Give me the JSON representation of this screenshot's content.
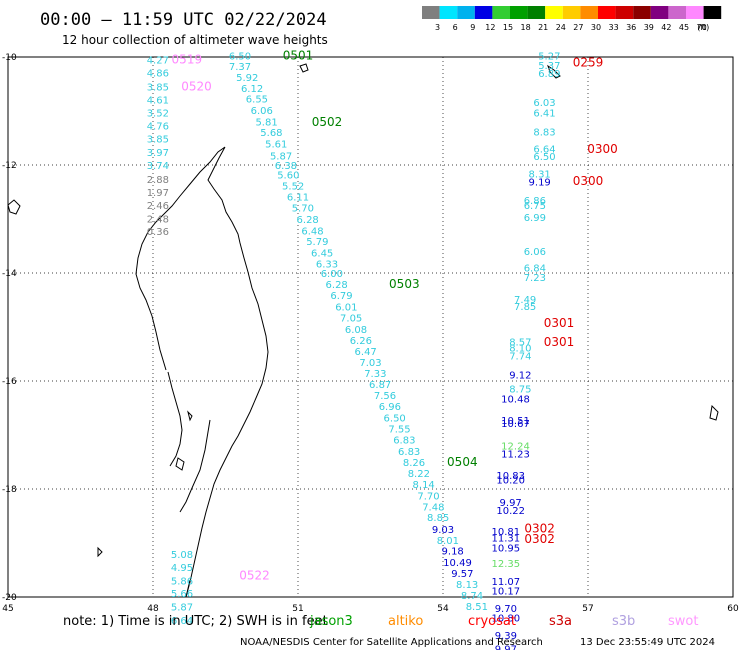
{
  "header": {
    "title": "00:00 – 11:59 UTC 02/22/2024",
    "subtitle": "12 hour collection of altimeter wave heights"
  },
  "legend": {
    "unit": "(ft)",
    "bins": [
      {
        "label": "3",
        "color": "#7f7f7f"
      },
      {
        "label": "6",
        "color": "#00e5ff"
      },
      {
        "label": "9",
        "color": "#00b2ee"
      },
      {
        "label": "12",
        "color": "#0000e5"
      },
      {
        "label": "15",
        "color": "#32cd32"
      },
      {
        "label": "18",
        "color": "#00a000"
      },
      {
        "label": "21",
        "color": "#008000"
      },
      {
        "label": "24",
        "color": "#ffff00"
      },
      {
        "label": "27",
        "color": "#ffcc00"
      },
      {
        "label": "30",
        "color": "#ff8c00"
      },
      {
        "label": "33",
        "color": "#ff0000"
      },
      {
        "label": "36",
        "color": "#cd0000"
      },
      {
        "label": "39",
        "color": "#8b0000"
      },
      {
        "label": "42",
        "color": "#800080"
      },
      {
        "label": "45",
        "color": "#cc66cc"
      },
      {
        "label": "70",
        "color": "#ff88ff"
      },
      {
        "label": "",
        "color": "#000000"
      }
    ]
  },
  "axes": {
    "x_ticks": [
      "45",
      "48",
      "51",
      "54",
      "57",
      "60"
    ],
    "y_ticks": [
      "-10",
      "-12",
      "-14",
      "-16",
      "-18",
      "-20"
    ]
  },
  "passes": [
    {
      "label": "0501",
      "lon": 51.0,
      "lat": -9.97,
      "color": "#008000"
    },
    {
      "label": "0502",
      "lon": 51.6,
      "lat": -11.2,
      "color": "#008000"
    },
    {
      "label": "0503",
      "lon": 53.2,
      "lat": -14.2,
      "color": "#008000"
    },
    {
      "label": "0504",
      "lon": 54.4,
      "lat": -17.5,
      "color": "#008000"
    },
    {
      "label": "0519",
      "lon": 48.7,
      "lat": -10.05,
      "color": "#ff88ff"
    },
    {
      "label": "0520",
      "lon": 48.9,
      "lat": -10.55,
      "color": "#ff88ff"
    },
    {
      "label": "0522",
      "lon": 50.1,
      "lat": -19.6,
      "color": "#ff88ff"
    },
    {
      "label": "0259",
      "lon": 57.0,
      "lat": -10.1,
      "color": "#e00000"
    },
    {
      "label": "0300",
      "lon": 57.3,
      "lat": -11.7,
      "color": "#e00000"
    },
    {
      "label": "0300",
      "lon": 57.0,
      "lat": -12.3,
      "color": "#e00000"
    },
    {
      "label": "0301",
      "lon": 56.4,
      "lat": -14.93,
      "color": "#e00000"
    },
    {
      "label": "0301",
      "lon": 56.4,
      "lat": -15.28,
      "color": "#e00000"
    },
    {
      "label": "0302",
      "lon": 56.0,
      "lat": -18.73,
      "color": "#e00000"
    },
    {
      "label": "0302",
      "lon": 56.0,
      "lat": -18.93,
      "color": "#e00000"
    }
  ],
  "observations": [
    {
      "lon": 48.1,
      "lat": -10.05,
      "text": "4.27",
      "color": "#33ccdd"
    },
    {
      "lon": 48.1,
      "lat": -10.29,
      "text": "4.86",
      "color": "#33ccdd"
    },
    {
      "lon": 48.1,
      "lat": -10.55,
      "text": "3.85",
      "color": "#33ccdd"
    },
    {
      "lon": 48.1,
      "lat": -10.79,
      "text": "4.61",
      "color": "#33ccdd"
    },
    {
      "lon": 48.1,
      "lat": -11.03,
      "text": "3.52",
      "color": "#33ccdd"
    },
    {
      "lon": 48.1,
      "lat": -11.27,
      "text": "4.76",
      "color": "#33ccdd"
    },
    {
      "lon": 48.1,
      "lat": -11.51,
      "text": "3.85",
      "color": "#33ccdd"
    },
    {
      "lon": 48.1,
      "lat": -11.76,
      "text": "3.97",
      "color": "#33ccdd"
    },
    {
      "lon": 48.1,
      "lat": -12.0,
      "text": "3.74",
      "color": "#33ccdd"
    },
    {
      "lon": 48.1,
      "lat": -12.26,
      "text": "2.88",
      "color": "#808080"
    },
    {
      "lon": 48.1,
      "lat": -12.5,
      "text": "1.97",
      "color": "#808080"
    },
    {
      "lon": 48.1,
      "lat": -12.74,
      "text": "2.46",
      "color": "#808080"
    },
    {
      "lon": 48.1,
      "lat": -12.99,
      "text": "2.48",
      "color": "#808080"
    },
    {
      "lon": 48.1,
      "lat": -13.22,
      "text": "0.36",
      "color": "#808080"
    },
    {
      "lon": 49.8,
      "lat": -9.97,
      "text": "6.50",
      "color": "#33ccdd"
    },
    {
      "lon": 49.8,
      "lat": -10.17,
      "text": "7.37",
      "color": "#33ccdd"
    },
    {
      "lon": 49.95,
      "lat": -10.37,
      "text": "5.92",
      "color": "#33ccdd"
    },
    {
      "lon": 50.05,
      "lat": -10.57,
      "text": "6.12",
      "color": "#33ccdd"
    },
    {
      "lon": 50.15,
      "lat": -10.77,
      "text": "6.55",
      "color": "#33ccdd"
    },
    {
      "lon": 50.25,
      "lat": -10.98,
      "text": "6.06",
      "color": "#33ccdd"
    },
    {
      "lon": 50.35,
      "lat": -11.19,
      "text": "5.81",
      "color": "#33ccdd"
    },
    {
      "lon": 50.45,
      "lat": -11.39,
      "text": "5.68",
      "color": "#33ccdd"
    },
    {
      "lon": 50.55,
      "lat": -11.6,
      "text": "5.61",
      "color": "#33ccdd"
    },
    {
      "lon": 50.65,
      "lat": -11.82,
      "text": "5.87",
      "color": "#33ccdd"
    },
    {
      "lon": 50.75,
      "lat": -12.0,
      "text": "6.38",
      "color": "#33ccdd"
    },
    {
      "lon": 50.8,
      "lat": -12.18,
      "text": "5.60",
      "color": "#33ccdd"
    },
    {
      "lon": 50.9,
      "lat": -12.38,
      "text": "5.52",
      "color": "#33ccdd"
    },
    {
      "lon": 51.0,
      "lat": -12.58,
      "text": "6.11",
      "color": "#33ccdd"
    },
    {
      "lon": 51.1,
      "lat": -12.79,
      "text": "5.70",
      "color": "#33ccdd"
    },
    {
      "lon": 51.2,
      "lat": -13.0,
      "text": "6.28",
      "color": "#33ccdd"
    },
    {
      "lon": 51.3,
      "lat": -13.21,
      "text": "6.48",
      "color": "#33ccdd"
    },
    {
      "lon": 51.4,
      "lat": -13.41,
      "text": "5.79",
      "color": "#33ccdd"
    },
    {
      "lon": 51.5,
      "lat": -13.62,
      "text": "6.45",
      "color": "#33ccdd"
    },
    {
      "lon": 51.6,
      "lat": -13.82,
      "text": "6.33",
      "color": "#33ccdd"
    },
    {
      "lon": 51.7,
      "lat": -14.0,
      "text": "6.00",
      "color": "#33ccdd"
    },
    {
      "lon": 51.8,
      "lat": -14.2,
      "text": "6.28",
      "color": "#33ccdd"
    },
    {
      "lon": 51.9,
      "lat": -14.41,
      "text": "6.79",
      "color": "#33ccdd"
    },
    {
      "lon": 52.0,
      "lat": -14.62,
      "text": "6.01",
      "color": "#33ccdd"
    },
    {
      "lon": 52.1,
      "lat": -14.82,
      "text": "7.05",
      "color": "#33ccdd"
    },
    {
      "lon": 52.2,
      "lat": -15.04,
      "text": "6.08",
      "color": "#33ccdd"
    },
    {
      "lon": 52.3,
      "lat": -15.24,
      "text": "6.26",
      "color": "#33ccdd"
    },
    {
      "lon": 52.4,
      "lat": -15.44,
      "text": "6.47",
      "color": "#33ccdd"
    },
    {
      "lon": 52.5,
      "lat": -15.65,
      "text": "7.03",
      "color": "#33ccdd"
    },
    {
      "lon": 52.6,
      "lat": -15.85,
      "text": "7.33",
      "color": "#33ccdd"
    },
    {
      "lon": 52.7,
      "lat": -16.06,
      "text": "6.87",
      "color": "#33ccdd"
    },
    {
      "lon": 52.8,
      "lat": -16.26,
      "text": "7.56",
      "color": "#33ccdd"
    },
    {
      "lon": 52.9,
      "lat": -16.46,
      "text": "6.96",
      "color": "#33ccdd"
    },
    {
      "lon": 53.0,
      "lat": -16.68,
      "text": "6.50",
      "color": "#33ccdd"
    },
    {
      "lon": 53.1,
      "lat": -16.88,
      "text": "7.55",
      "color": "#33ccdd"
    },
    {
      "lon": 53.2,
      "lat": -17.08,
      "text": "6.83",
      "color": "#33ccdd"
    },
    {
      "lon": 53.3,
      "lat": -17.3,
      "text": "6.83",
      "color": "#33ccdd"
    },
    {
      "lon": 53.4,
      "lat": -17.5,
      "text": "8.26",
      "color": "#33ccdd"
    },
    {
      "lon": 53.5,
      "lat": -17.7,
      "text": "8.22",
      "color": "#33ccdd"
    },
    {
      "lon": 53.6,
      "lat": -17.91,
      "text": "8.14",
      "color": "#33ccdd"
    },
    {
      "lon": 53.7,
      "lat": -18.12,
      "text": "7.70",
      "color": "#33ccdd"
    },
    {
      "lon": 53.8,
      "lat": -18.32,
      "text": "7.48",
      "color": "#33ccdd"
    },
    {
      "lon": 53.9,
      "lat": -18.52,
      "text": "8.85",
      "color": "#33ccdd"
    },
    {
      "lon": 54.0,
      "lat": -18.74,
      "text": "9.03",
      "color": "#0000cc"
    },
    {
      "lon": 54.1,
      "lat": -18.94,
      "text": "8.01",
      "color": "#33ccdd"
    },
    {
      "lon": 54.2,
      "lat": -19.14,
      "text": "9.18",
      "color": "#0000cc"
    },
    {
      "lon": 54.3,
      "lat": -19.35,
      "text": "10.49",
      "color": "#0000cc"
    },
    {
      "lon": 54.4,
      "lat": -19.56,
      "text": "9.57",
      "color": "#0000cc"
    },
    {
      "lon": 54.5,
      "lat": -19.76,
      "text": "8.13",
      "color": "#33ccdd"
    },
    {
      "lon": 54.6,
      "lat": -19.96,
      "text": "8.74",
      "color": "#33ccdd"
    },
    {
      "lon": 54.7,
      "lat": -20.17,
      "text": "8.51",
      "color": "#33ccdd"
    },
    {
      "lon": 48.6,
      "lat": -19.2,
      "text": "5.08",
      "color": "#33ccdd"
    },
    {
      "lon": 48.6,
      "lat": -19.44,
      "text": "4.95",
      "color": "#33ccdd"
    },
    {
      "lon": 48.6,
      "lat": -19.69,
      "text": "5.86",
      "color": "#33ccdd"
    },
    {
      "lon": 48.6,
      "lat": -19.93,
      "text": "5.66",
      "color": "#33ccdd"
    },
    {
      "lon": 48.6,
      "lat": -20.18,
      "text": "5.87",
      "color": "#33ccdd"
    },
    {
      "lon": 48.6,
      "lat": -20.43,
      "text": "6.64",
      "color": "#33ccdd"
    },
    {
      "lon": 56.2,
      "lat": -9.97,
      "text": "5.27",
      "color": "#33ccdd"
    },
    {
      "lon": 56.2,
      "lat": -10.15,
      "text": "5.37",
      "color": "#33ccdd"
    },
    {
      "lon": 56.2,
      "lat": -10.3,
      "text": "6.89",
      "color": "#33ccdd"
    },
    {
      "lon": 56.1,
      "lat": -10.83,
      "text": "6.03",
      "color": "#33ccdd"
    },
    {
      "lon": 56.1,
      "lat": -11.03,
      "text": "6.41",
      "color": "#33ccdd"
    },
    {
      "lon": 56.1,
      "lat": -11.38,
      "text": "8.83",
      "color": "#33ccdd"
    },
    {
      "lon": 56.1,
      "lat": -11.69,
      "text": "6.64",
      "color": "#33ccdd"
    },
    {
      "lon": 56.1,
      "lat": -11.83,
      "text": "6.50",
      "color": "#33ccdd"
    },
    {
      "lon": 56.0,
      "lat": -12.16,
      "text": "8.31",
      "color": "#33ccdd"
    },
    {
      "lon": 56.0,
      "lat": -12.31,
      "text": "9.19",
      "color": "#0000cc"
    },
    {
      "lon": 55.9,
      "lat": -12.65,
      "text": "6.86",
      "color": "#33ccdd"
    },
    {
      "lon": 55.9,
      "lat": -12.74,
      "text": "6.75",
      "color": "#33ccdd"
    },
    {
      "lon": 55.9,
      "lat": -12.96,
      "text": "6.99",
      "color": "#33ccdd"
    },
    {
      "lon": 55.9,
      "lat": -13.59,
      "text": "6.06",
      "color": "#33ccdd"
    },
    {
      "lon": 55.9,
      "lat": -13.9,
      "text": "6.84",
      "color": "#33ccdd"
    },
    {
      "lon": 55.9,
      "lat": -14.07,
      "text": "7.23",
      "color": "#33ccdd"
    },
    {
      "lon": 55.7,
      "lat": -14.48,
      "text": "7.49",
      "color": "#33ccdd"
    },
    {
      "lon": 55.7,
      "lat": -14.61,
      "text": "7.85",
      "color": "#33ccdd"
    },
    {
      "lon": 55.6,
      "lat": -15.27,
      "text": "8.57",
      "color": "#33ccdd"
    },
    {
      "lon": 55.6,
      "lat": -15.38,
      "text": "8.10",
      "color": "#33ccdd"
    },
    {
      "lon": 55.6,
      "lat": -15.53,
      "text": "7.74",
      "color": "#33ccdd"
    },
    {
      "lon": 55.6,
      "lat": -15.88,
      "text": "9.12",
      "color": "#0000cc"
    },
    {
      "lon": 55.6,
      "lat": -16.14,
      "text": "8.75",
      "color": "#33ccdd"
    },
    {
      "lon": 55.5,
      "lat": -16.32,
      "text": "10.48",
      "color": "#0000cc"
    },
    {
      "lon": 55.5,
      "lat": -16.72,
      "text": "10.51",
      "color": "#0000cc"
    },
    {
      "lon": 55.5,
      "lat": -16.78,
      "text": "10.67",
      "color": "#0000cc"
    },
    {
      "lon": 55.5,
      "lat": -17.19,
      "text": "12.24",
      "color": "#66dd66"
    },
    {
      "lon": 55.5,
      "lat": -17.34,
      "text": "11.23",
      "color": "#0000cc"
    },
    {
      "lon": 55.4,
      "lat": -17.74,
      "text": "10.83",
      "color": "#0000cc"
    },
    {
      "lon": 55.4,
      "lat": -17.82,
      "text": "10.20",
      "color": "#0000cc"
    },
    {
      "lon": 55.4,
      "lat": -18.24,
      "text": "9.97",
      "color": "#0000cc"
    },
    {
      "lon": 55.4,
      "lat": -18.39,
      "text": "10.22",
      "color": "#0000cc"
    },
    {
      "lon": 55.3,
      "lat": -18.78,
      "text": "10.81",
      "color": "#0000cc"
    },
    {
      "lon": 55.3,
      "lat": -18.9,
      "text": "11.31",
      "color": "#0000cc"
    },
    {
      "lon": 55.3,
      "lat": -19.08,
      "text": "10.95",
      "color": "#0000cc"
    },
    {
      "lon": 55.3,
      "lat": -19.37,
      "text": "12.35",
      "color": "#66dd66"
    },
    {
      "lon": 55.3,
      "lat": -19.7,
      "text": "11.07",
      "color": "#0000cc"
    },
    {
      "lon": 55.3,
      "lat": -19.88,
      "text": "10.17",
      "color": "#0000cc"
    },
    {
      "lon": 55.3,
      "lat": -20.2,
      "text": "9.70",
      "color": "#0000cc"
    },
    {
      "lon": 55.3,
      "lat": -20.38,
      "text": "10.80",
      "color": "#0000cc"
    },
    {
      "lon": 55.3,
      "lat": -20.7,
      "text": "9.39",
      "color": "#0000cc"
    },
    {
      "lon": 55.3,
      "lat": -20.95,
      "text": "9.97",
      "color": "#0000cc"
    }
  ],
  "footer": {
    "note": "note:  1) Time is in UTC; 2) SWH is in feet",
    "satellites": [
      {
        "name": "jason3",
        "color": "#00a000"
      },
      {
        "name": "altiko",
        "color": "#ff8c00"
      },
      {
        "name": "cryosat",
        "color": "#ff0000"
      },
      {
        "name": "s3a",
        "color": "#cd0000"
      },
      {
        "name": "s3b",
        "color": "#b0a0e0"
      },
      {
        "name": "swot",
        "color": "#ff99ff"
      }
    ],
    "credit": "NOAA/NESDIS Center for Satellite Applications and Research",
    "timestamp": "13 Dec 23:55:49 UTC 2024"
  }
}
